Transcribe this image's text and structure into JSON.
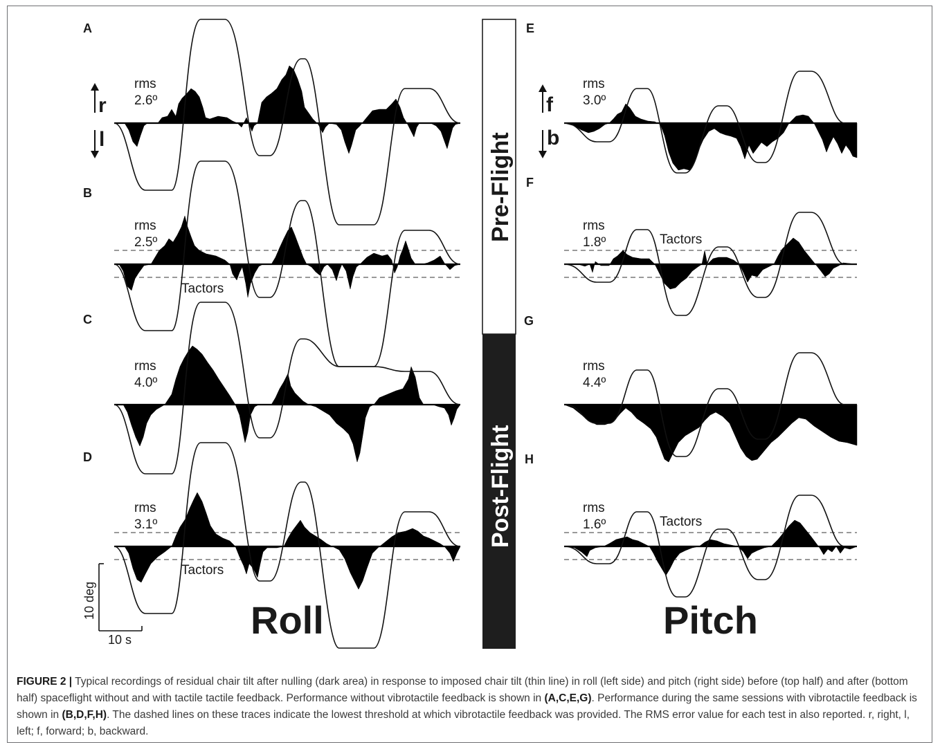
{
  "panels": [
    {
      "letter": "A",
      "rms_label": "rms",
      "rms_value": "2.6º"
    },
    {
      "letter": "B",
      "rms_label": "rms",
      "rms_value": "2.5º",
      "tactors": "Tactors"
    },
    {
      "letter": "C",
      "rms_label": "rms",
      "rms_value": "4.0º"
    },
    {
      "letter": "D",
      "rms_label": "rms",
      "rms_value": "3.1º",
      "tactors": "Tactors"
    },
    {
      "letter": "E",
      "rms_label": "rms",
      "rms_value": "3.0º"
    },
    {
      "letter": "F",
      "rms_label": "rms",
      "rms_value": "1.8º",
      "tactors": "Tactors"
    },
    {
      "letter": "G",
      "rms_label": "rms",
      "rms_value": "4.4º"
    },
    {
      "letter": "H",
      "rms_label": "rms",
      "rms_value": "1.6º",
      "tactors": "Tactors"
    }
  ],
  "directions": {
    "roll_up": "r",
    "roll_down": "l",
    "pitch_up": "f",
    "pitch_down": "b"
  },
  "bar": {
    "pre": "Pre-Flight",
    "post": "Post-Flight"
  },
  "axis_titles": {
    "roll": "Roll",
    "pitch": "Pitch"
  },
  "scale_bar": {
    "vertical": "10 deg",
    "horizontal": "10 s"
  },
  "caption": {
    "label": "FIGURE 2 |",
    "p1": " Typical recordings of residual chair tilt after nulling (dark area) in response to imposed chair tilt (thin line) in roll (left side) and pitch (right side) before (top half) and after (bottom half) spaceflight without and with tactile tactile feedback. Performance without vibrotactile feedback is shown in ",
    "ref1": "(A,C,E,G)",
    "p2": ". Performance during the same sessions with vibrotactile feedback is shown in ",
    "ref2": "(B,D,F,H)",
    "p3": ". The dashed lines on these traces indicate the lowest threshold at which vibrotactile feedback was provided. The RMS error value for each test in also reported. r, right, l, left; f, forward; b, backward."
  },
  "colors": {
    "ink": "#1a1a1a",
    "trace": "#000000",
    "frame": "#6d6e71",
    "bar_pre": "#ffffff",
    "bar_post": "#1e1e1e"
  }
}
